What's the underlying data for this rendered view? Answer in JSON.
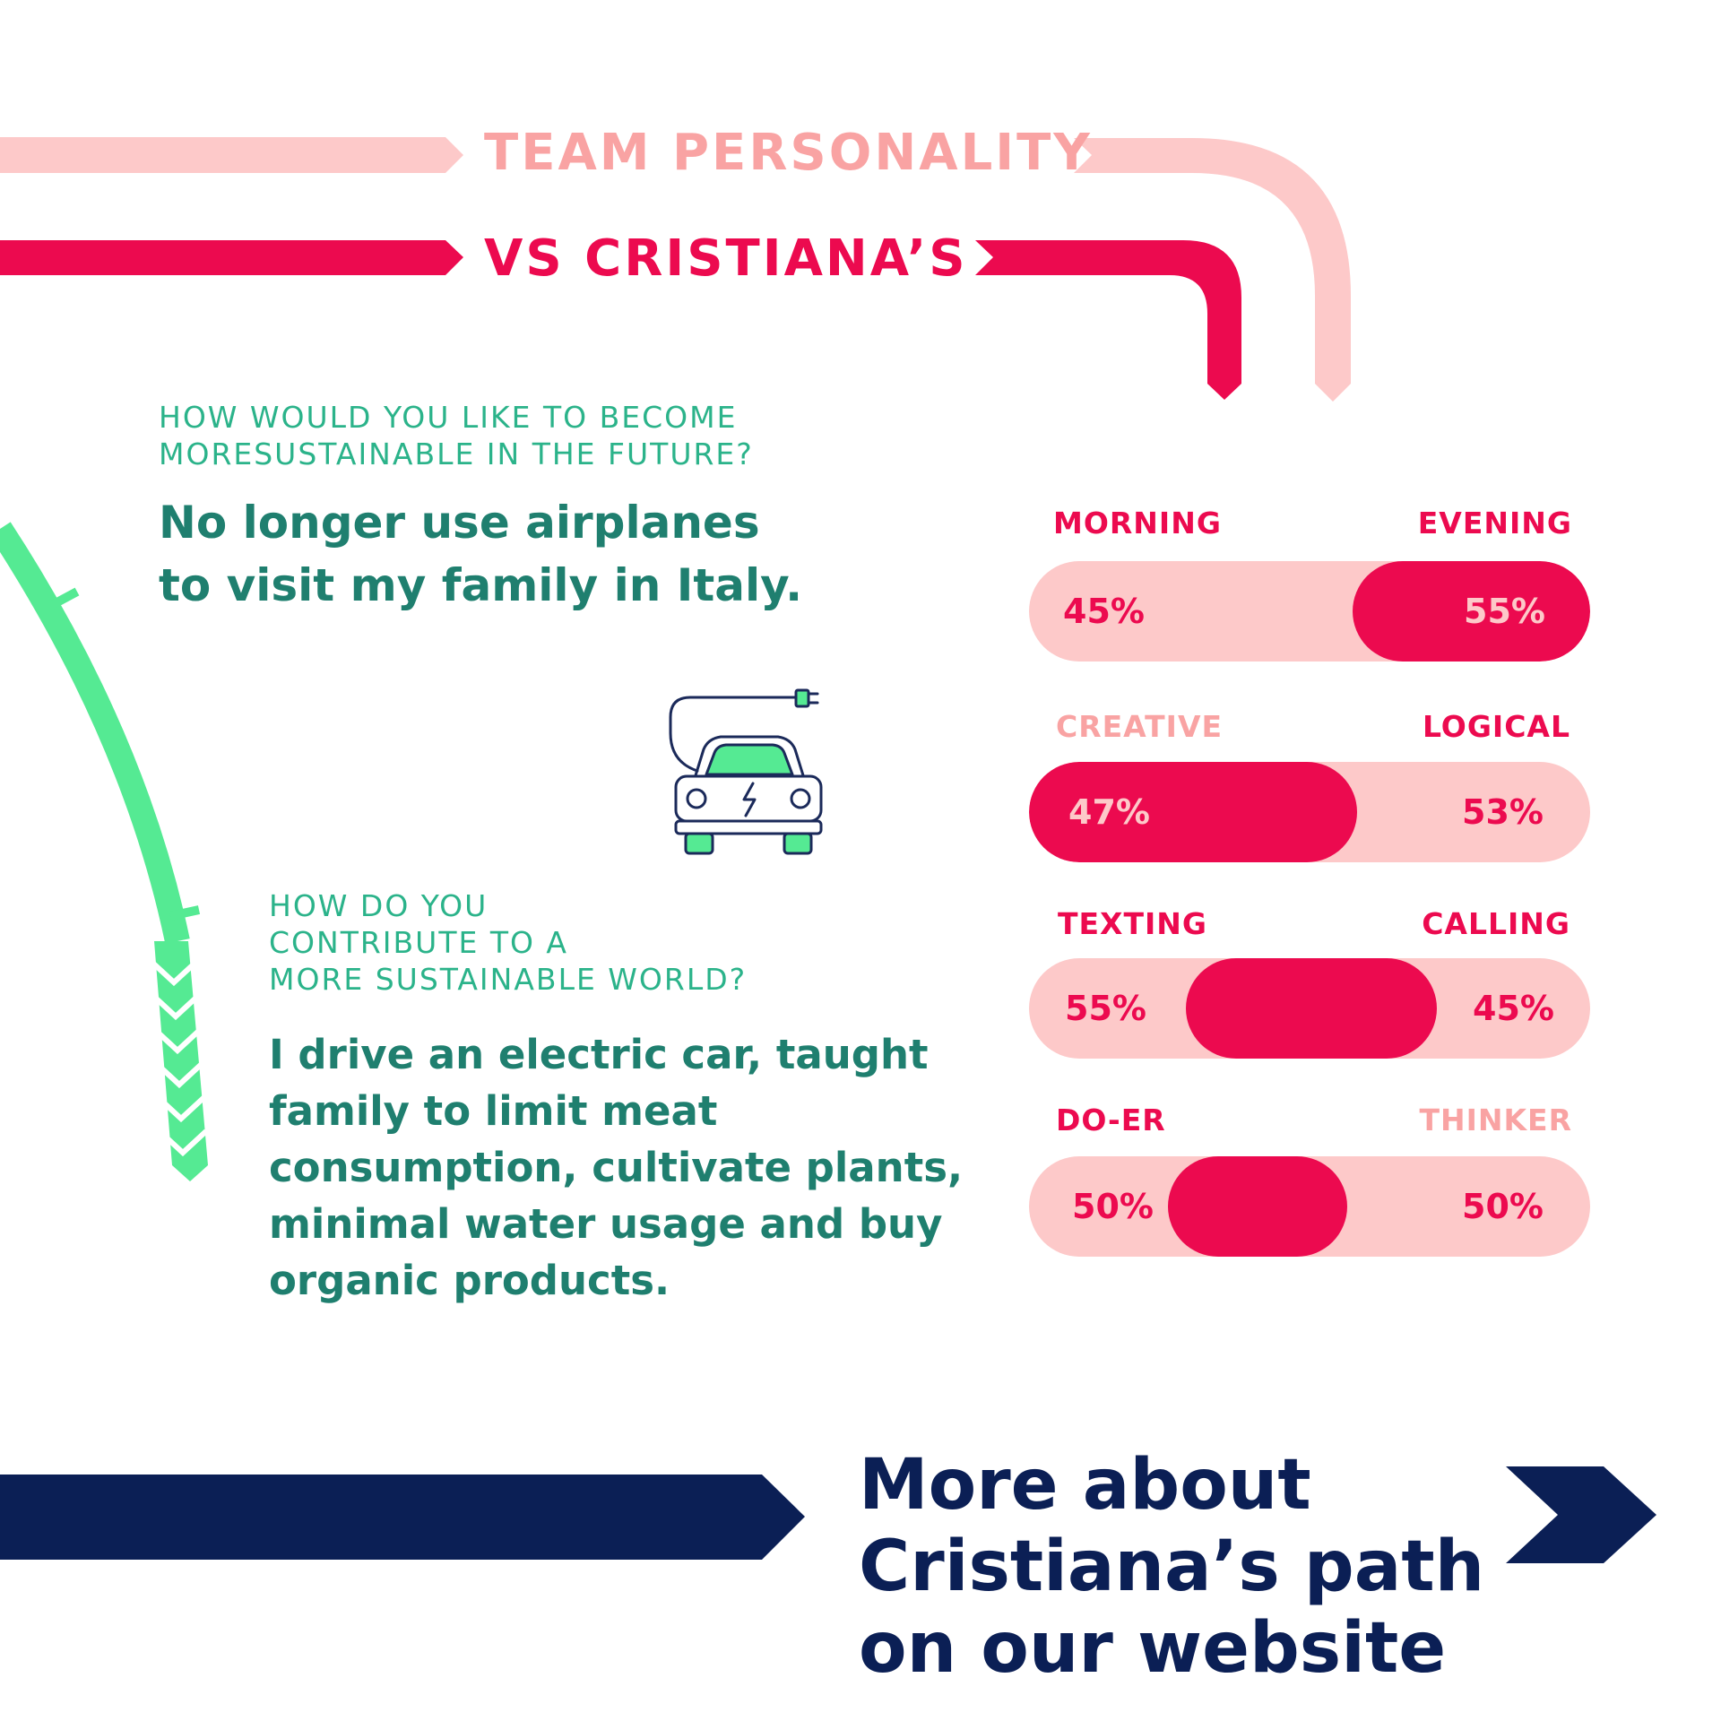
{
  "colors": {
    "pink_light": "#fdc9c9",
    "pink_mid": "#f9a3a3",
    "magenta": "#ec0a4f",
    "green": "#55ea93",
    "teal": "#1f7f6f",
    "navy": "#0b1f55"
  },
  "header": {
    "line1": "TEAM PERSONALITY",
    "line2": "VS CRISTIANA’S"
  },
  "q1": {
    "question": "HOW WOULD YOU LIKE TO BECOME\nMORESUSTAINABLE IN THE FUTURE?",
    "answer": "No longer use airplanes\nto visit my family in Italy."
  },
  "q2": {
    "question": "HOW DO YOU\nCONTRIBUTE TO A\nMORE SUSTAINABLE WORLD?",
    "answer": "I drive an electric car, taught\nfamily to limit meat\nconsumption, cultivate plants,\nminimal water usage and buy\norganic products."
  },
  "icon": "electric-car-icon",
  "traits": [
    {
      "left_label": "MORNING",
      "right_label": "EVENING",
      "left_pct": "45%",
      "right_pct": "55%",
      "left_value": 45,
      "right_value": 55
    },
    {
      "left_label": "CREATIVE",
      "right_label": "LOGICAL",
      "left_pct": "47%",
      "right_pct": "53%",
      "left_value": 47,
      "right_value": 53
    },
    {
      "left_label": "TEXTING",
      "right_label": "CALLING",
      "left_pct": "55%",
      "right_pct": "45%",
      "left_value": 55,
      "right_value": 45
    },
    {
      "left_label": "DO-ER",
      "right_label": "THINKER",
      "left_pct": "50%",
      "right_pct": "50%",
      "left_value": 50,
      "right_value": 50
    }
  ],
  "cta": {
    "text": "More about\nCristiana’s path\non our website"
  }
}
